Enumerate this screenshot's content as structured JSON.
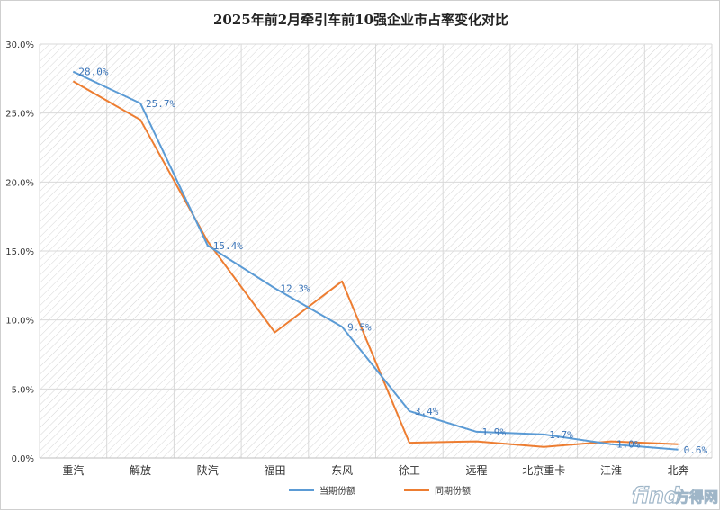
{
  "chart_data": {
    "type": "line",
    "title": "2025年前2月牵引车前10强企业市占率变化对比",
    "categories": [
      "重汽",
      "解放",
      "陕汽",
      "福田",
      "东风",
      "徐工",
      "远程",
      "北京重卡",
      "江淮",
      "北奔"
    ],
    "y_ticks": [
      "0.0%",
      "5.0%",
      "10.0%",
      "15.0%",
      "20.0%",
      "25.0%",
      "30.0%"
    ],
    "ylim": [
      0,
      30
    ],
    "y_unit": "%",
    "grid": true,
    "legend_position": "bottom",
    "series": [
      {
        "name": "当期份额",
        "color": "#5b9bd5",
        "values": [
          28.0,
          25.7,
          15.4,
          12.3,
          9.5,
          3.4,
          1.9,
          1.7,
          1.0,
          0.6
        ],
        "labels": [
          "28.0%",
          "25.7%",
          "15.4%",
          "12.3%",
          "9.5%",
          "3.4%",
          "1.9%",
          "1.7%",
          "1.0%",
          "0.6%"
        ]
      },
      {
        "name": "同期份额",
        "color": "#ed7d31",
        "values": [
          27.3,
          24.5,
          15.7,
          9.1,
          12.8,
          1.1,
          1.2,
          0.8,
          1.2,
          1.0
        ]
      }
    ]
  },
  "watermark": {
    "find": "find",
    "brand": "方得网"
  }
}
